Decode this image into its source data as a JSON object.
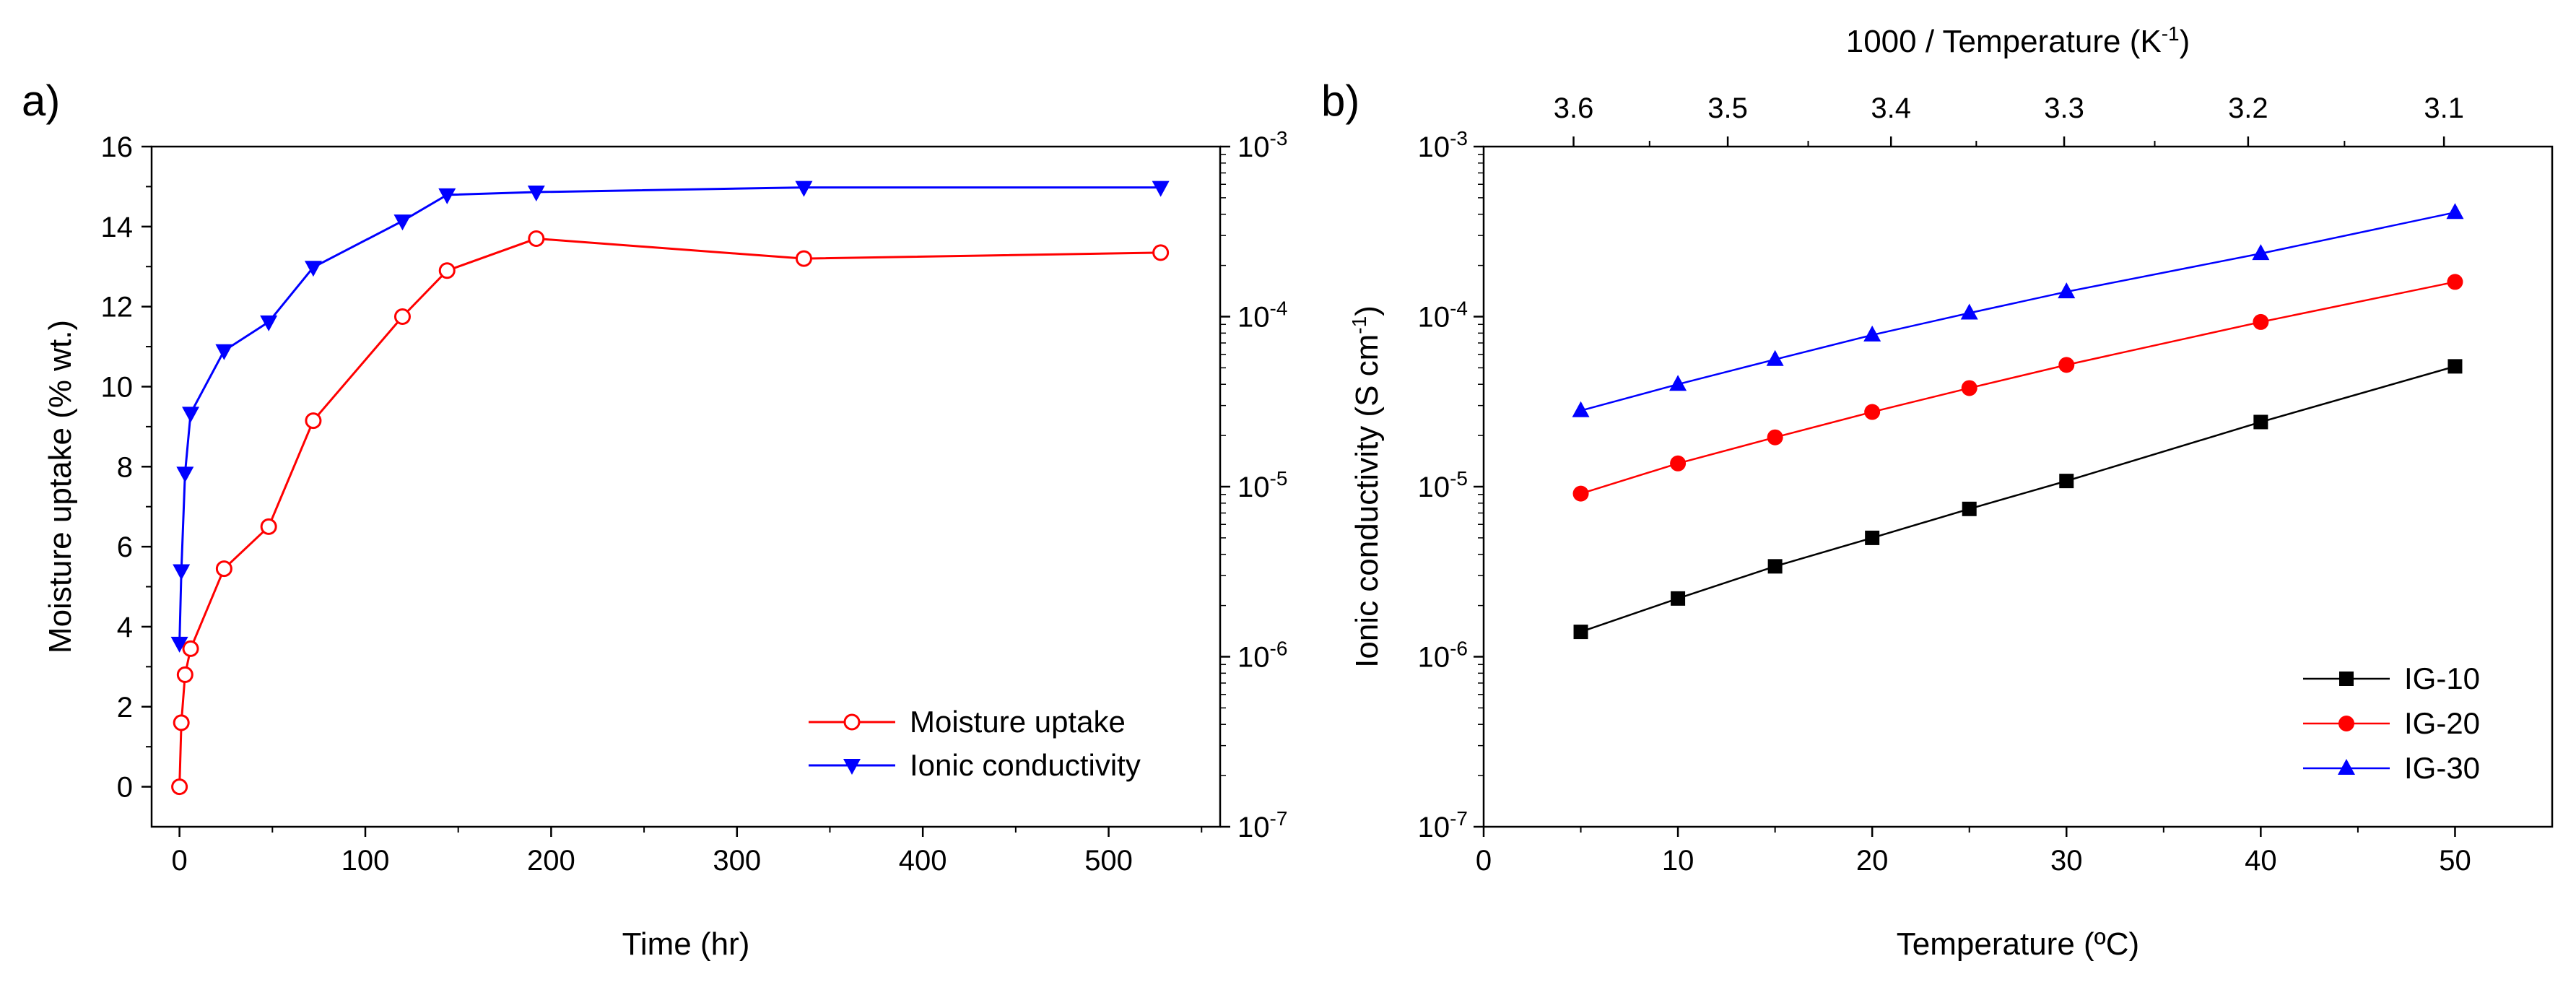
{
  "chart_data": [
    {
      "panel": "a)",
      "type": "line",
      "x": [
        0,
        1,
        3,
        6,
        24,
        48,
        72,
        120,
        144,
        192,
        336,
        528
      ],
      "xlabel": "Time (hr)",
      "xlim": [
        -15,
        560
      ],
      "xticks": [
        0,
        100,
        200,
        300,
        400,
        500
      ],
      "ylabel_left": "Moisture uptake (% wt.)",
      "ylim_left": [
        -1,
        16
      ],
      "yticks_left": [
        0,
        2,
        4,
        6,
        8,
        10,
        12,
        14,
        16
      ],
      "ylim_right_log": [
        1e-07,
        0.001
      ],
      "yticks_right": [
        {
          "base": "10",
          "exp": "-7",
          "value": 1e-07
        },
        {
          "base": "10",
          "exp": "-6",
          "value": 1e-06
        },
        {
          "base": "10",
          "exp": "-5",
          "value": 1e-05
        },
        {
          "base": "10",
          "exp": "-4",
          "value": 0.0001
        },
        {
          "base": "10",
          "exp": "-3",
          "value": 0.001
        }
      ],
      "series": [
        {
          "name": "Moisture uptake",
          "axis": "left",
          "color": "#ff0000",
          "marker": "open-circle",
          "x": [
            0,
            1,
            3,
            6,
            24,
            48,
            72,
            120,
            144,
            192,
            336,
            528
          ],
          "values": [
            0,
            1.6,
            2.8,
            3.45,
            5.45,
            6.5,
            9.15,
            11.75,
            12.9,
            13.7,
            13.2,
            13.35
          ]
        },
        {
          "name": "Ionic conductivity",
          "axis": "right",
          "color": "#0000ff",
          "marker": "filled-triangle-down",
          "x": [
            0,
            1,
            3,
            6,
            24,
            48,
            72,
            120,
            144,
            192,
            336,
            528
          ],
          "values": [
            1.2e-06,
            3.2e-06,
            1.2e-05,
            2.7e-05,
            6.3e-05,
            9.3e-05,
            0.000195,
            0.000365,
            0.00052,
            0.00054,
            0.000575,
            0.000575
          ]
        }
      ],
      "legend_position": "bottom-right"
    },
    {
      "panel": "b)",
      "type": "line",
      "x": [
        5,
        10,
        15,
        20,
        25,
        30,
        40,
        50
      ],
      "xlabel": "Temperature (ºC)",
      "xlim": [
        0,
        55
      ],
      "xticks": [
        0,
        10,
        20,
        30,
        40,
        50
      ],
      "x2label": "1000 / Temperature (K",
      "x2label_sup": "-1",
      "x2label_end": ")",
      "x2ticks": [
        "3.6",
        "3.5",
        "3.4",
        "3.3",
        "3.2",
        "3.1"
      ],
      "x2ticks_values": [
        3.6,
        3.5,
        3.4,
        3.3,
        3.2,
        3.1
      ],
      "ylabel": "Ionic conductivity (S cm",
      "ylabel_sup": "-1",
      "ylabel_end": ")",
      "ylim_log": [
        1e-07,
        0.001
      ],
      "yticks": [
        {
          "base": "10",
          "exp": "-7",
          "value": 1e-07
        },
        {
          "base": "10",
          "exp": "-6",
          "value": 1e-06
        },
        {
          "base": "10",
          "exp": "-5",
          "value": 1e-05
        },
        {
          "base": "10",
          "exp": "-4",
          "value": 0.0001
        },
        {
          "base": "10",
          "exp": "-3",
          "value": 0.001
        }
      ],
      "series": [
        {
          "name": "IG-10",
          "color": "#000000",
          "marker": "filled-square",
          "x": [
            5,
            10,
            15,
            20,
            25,
            30,
            40,
            50
          ],
          "values": [
            1.4e-06,
            2.2e-06,
            3.4e-06,
            5e-06,
            7.4e-06,
            1.08e-05,
            2.4e-05,
            5.1e-05
          ]
        },
        {
          "name": "IG-20",
          "color": "#ff0000",
          "marker": "filled-circle",
          "x": [
            5,
            10,
            15,
            20,
            25,
            30,
            40,
            50
          ],
          "values": [
            9.1e-06,
            1.37e-05,
            1.95e-05,
            2.75e-05,
            3.8e-05,
            5.2e-05,
            9.3e-05,
            0.00016
          ]
        },
        {
          "name": "IG-30",
          "color": "#0000ff",
          "marker": "filled-triangle-up",
          "x": [
            5,
            10,
            15,
            20,
            25,
            30,
            40,
            50
          ],
          "values": [
            2.8e-05,
            4e-05,
            5.6e-05,
            7.8e-05,
            0.000105,
            0.00014,
            0.000235,
            0.00041
          ]
        }
      ],
      "legend_position": "bottom-right"
    }
  ]
}
